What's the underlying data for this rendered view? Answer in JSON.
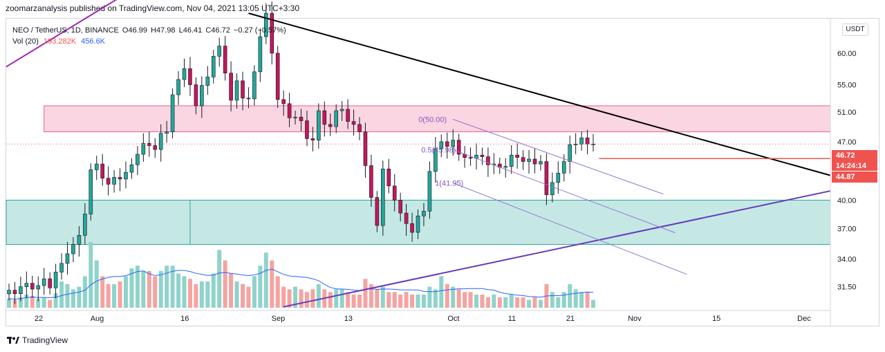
{
  "header": {
    "publisher_line": "zoomarzanalysis published on TradingView.com, Nov 04, 2021 13:05 UTC+3:30"
  },
  "legend": {
    "symbol": "NEO / TetherUS, 1D, BINANCE",
    "open": "O46.99",
    "high": "H47.98",
    "low": "L46.41",
    "close": "C46.72",
    "change": "−0.27 (−0.57%)",
    "volume_label": "Vol (20)",
    "volume_value": "193.282K",
    "volume_ma": "456.6K"
  },
  "currency": "USDT",
  "price_label": {
    "price": "46.72",
    "countdown": "14:24:14"
  },
  "level_label": "44.87",
  "footer": {
    "brand": "TradingView"
  },
  "colors": {
    "up": "#26a69a",
    "down": "#ef5350",
    "up_volume": "#8fd3cb",
    "down_volume": "#f5a3a1",
    "zone_resistance": "#f8c8d8",
    "zone_support": "#b2e0dc",
    "channel_upper": "#9c27b0",
    "trend_black": "#000000",
    "trend_lower": "#673ab7",
    "fib": "#9575cd",
    "volume_ma": "#2962ff",
    "level_line": "#ef5350"
  },
  "chart_data": {
    "type": "candlestick",
    "title": "NEO / TetherUS, 1D, BINANCE",
    "y_scale": "log",
    "ylim": [
      29.5,
      66
    ],
    "y_ticks": [
      31.5,
      34.0,
      37.0,
      40.0,
      43.0,
      47.0,
      51.0,
      55.0,
      60.0
    ],
    "x_ticks": [
      {
        "label": "22",
        "day": 0
      },
      {
        "label": "Aug",
        "day": 10
      },
      {
        "label": "16",
        "day": 25
      },
      {
        "label": "Sep",
        "day": 41
      },
      {
        "label": "13",
        "day": 53
      },
      {
        "label": "Oct",
        "day": 71
      },
      {
        "label": "11",
        "day": 81
      },
      {
        "label": "21",
        "day": 91
      },
      {
        "label": "Nov",
        "day": 102
      },
      {
        "label": "15",
        "day": 116
      },
      {
        "label": "Dec",
        "day": 131
      }
    ],
    "last_day": 108,
    "closes": [
      31.2,
      30.9,
      31.5,
      31.8,
      31.3,
      31.6,
      32.2,
      31.4,
      32.8,
      33.6,
      34.5,
      35.4,
      36.3,
      38.5,
      43.5,
      44.2,
      42.5,
      41.8,
      42.6,
      42.4,
      43.2,
      44.1,
      45.4,
      46.8,
      46.5,
      46.0,
      48.1,
      48.3,
      53.5,
      55.8,
      57.5,
      55.0,
      51.9,
      54.9,
      56.2,
      59.5,
      61.2,
      56.8,
      52.7,
      55.6,
      53.0,
      52.9,
      57.0,
      62.8,
      67.0,
      60.0,
      52.8,
      52.2,
      50.2,
      50.3,
      49.8,
      47.4,
      47.2,
      51.2,
      49.3,
      49.0,
      51.2,
      51.4,
      49.7,
      49.3,
      48.3,
      44.0,
      40.3,
      37.3,
      43.6,
      41.6,
      40.0,
      38.6,
      37.5,
      36.6,
      38.3,
      38.8,
      43.3,
      46.1,
      47.0,
      46.4,
      47.2,
      45.4,
      45.0,
      44.9,
      45.3,
      45.1,
      44.1,
      44.2,
      43.8,
      43.9,
      45.3,
      45.0,
      44.5,
      44.8,
      44.2,
      44.5,
      40.6,
      42.0,
      43.1,
      44.5,
      46.6,
      46.7,
      47.5,
      46.7,
      46.7
    ],
    "volumes_relative": [
      0.35,
      0.3,
      0.4,
      0.5,
      0.45,
      0.35,
      0.4,
      0.3,
      0.55,
      1.0,
      0.9,
      0.7,
      0.8,
      1.2,
      2.5,
      1.8,
      1.2,
      0.9,
      0.9,
      1.0,
      1.2,
      1.5,
      1.6,
      1.4,
      1.4,
      1.2,
      1.4,
      1.6,
      1.6,
      1.3,
      1.2,
      1.1,
      0.9,
      1.0,
      1.0,
      1.3,
      2.2,
      1.8,
      1.3,
      1.0,
      0.9,
      0.8,
      1.2,
      1.6,
      2.1,
      1.8,
      1.2,
      0.8,
      0.7,
      0.8,
      0.7,
      0.6,
      0.7,
      0.9,
      0.7,
      0.6,
      0.7,
      0.7,
      0.6,
      0.5,
      0.5,
      1.1,
      0.9,
      0.7,
      0.8,
      0.6,
      0.6,
      0.5,
      0.6,
      0.5,
      0.5,
      0.5,
      0.8,
      0.7,
      1.2,
      0.9,
      0.8,
      0.7,
      0.6,
      0.6,
      0.5,
      0.5,
      0.4,
      0.5,
      0.4,
      0.4,
      0.5,
      0.4,
      0.4,
      0.3,
      0.4,
      0.3,
      0.9,
      0.6,
      0.4,
      0.6,
      0.9,
      0.7,
      0.6,
      0.6,
      0.3
    ],
    "zones": [
      {
        "name": "resistance-zone",
        "from_day": 6,
        "to_day": 141,
        "low": 48.3,
        "high": 51.9
      },
      {
        "name": "support-zone",
        "from_day": -7,
        "to_day": 141,
        "low": 35.4,
        "high": 40.0
      }
    ],
    "trendlines": [
      {
        "name": "channel-upper",
        "points": [
          [
            -7,
            54.2
          ],
          [
            26,
            75.0
          ]
        ]
      },
      {
        "name": "black-downtrend",
        "points": [
          [
            41,
            67.0
          ],
          [
            146,
            41.8
          ]
        ]
      },
      {
        "name": "lower-uptrend",
        "points": [
          [
            47,
            29.8
          ],
          [
            146,
            41.8
          ]
        ]
      }
    ],
    "fib_retracement": {
      "levels": [
        {
          "label": "0(50.00)",
          "value": 50.0
        },
        {
          "label": "0.5(45.98)",
          "value": 45.98
        },
        {
          "label": "1(41.95)",
          "value": 41.95
        }
      ],
      "from_day": 76,
      "to_day": 126
    },
    "horizontal_level": 44.87
  }
}
